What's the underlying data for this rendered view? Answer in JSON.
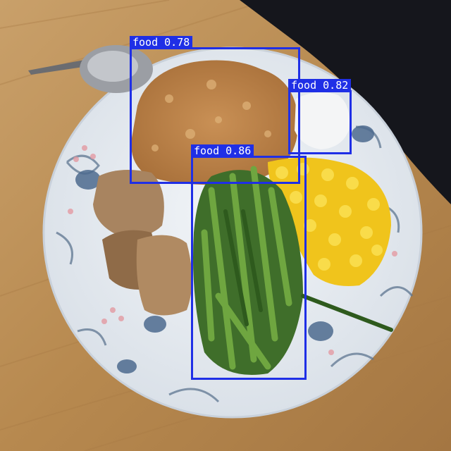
{
  "detections": [
    {
      "label": "food",
      "score": "0.78"
    },
    {
      "label": "food",
      "score": "0.82"
    },
    {
      "label": "food",
      "score": "0.86"
    }
  ],
  "colors": {
    "box": "#1f2fe6",
    "table": "#b88a52",
    "plate": "#e9eef4"
  }
}
